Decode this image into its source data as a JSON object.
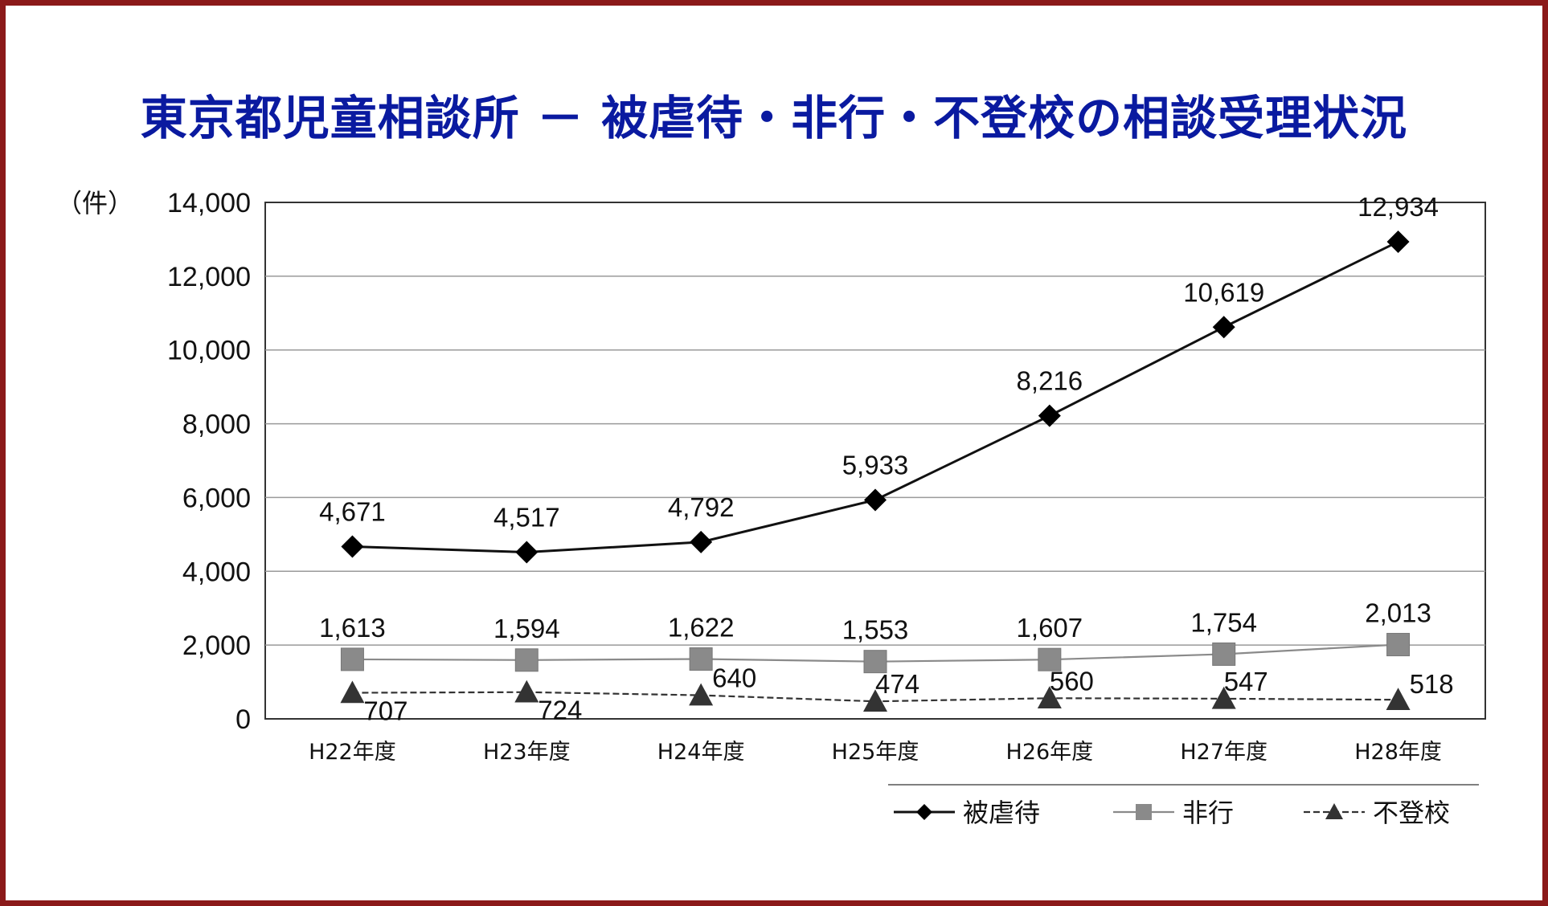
{
  "title": "東京都児童相談所 － 被虐待・非行・不登校の相談受理状況",
  "chart_data": {
    "type": "line",
    "unit_label": "（件）",
    "categories": [
      "H22年度",
      "H23年度",
      "H24年度",
      "H25年度",
      "H26年度",
      "H27年度",
      "H28年度"
    ],
    "ylim": [
      0,
      14000
    ],
    "yticks": [
      0,
      2000,
      4000,
      6000,
      8000,
      10000,
      12000,
      14000
    ],
    "ytick_labels": [
      "0",
      "2,000",
      "4,000",
      "6,000",
      "8,000",
      "10,000",
      "12,000",
      "14,000"
    ],
    "grid": true,
    "legend_position": "bottom-right",
    "series": [
      {
        "name": "被虐待",
        "marker": "diamond",
        "color": "#111111",
        "values": [
          4671,
          4517,
          4792,
          5933,
          8216,
          10619,
          12934
        ],
        "labels": [
          "4,671",
          "4,517",
          "4,792",
          "5,933",
          "8,216",
          "10,619",
          "12,934"
        ]
      },
      {
        "name": "非行",
        "marker": "square",
        "color": "#8a8a8a",
        "values": [
          1613,
          1594,
          1622,
          1553,
          1607,
          1754,
          2013
        ],
        "labels": [
          "1,613",
          "1,594",
          "1,622",
          "1,553",
          "1,607",
          "1,754",
          "2,013"
        ]
      },
      {
        "name": "不登校",
        "marker": "triangle",
        "color": "#333333",
        "values": [
          707,
          724,
          640,
          474,
          560,
          547,
          518
        ],
        "labels": [
          "707",
          "724",
          "640",
          "474",
          "560",
          "547",
          "518"
        ]
      }
    ]
  }
}
